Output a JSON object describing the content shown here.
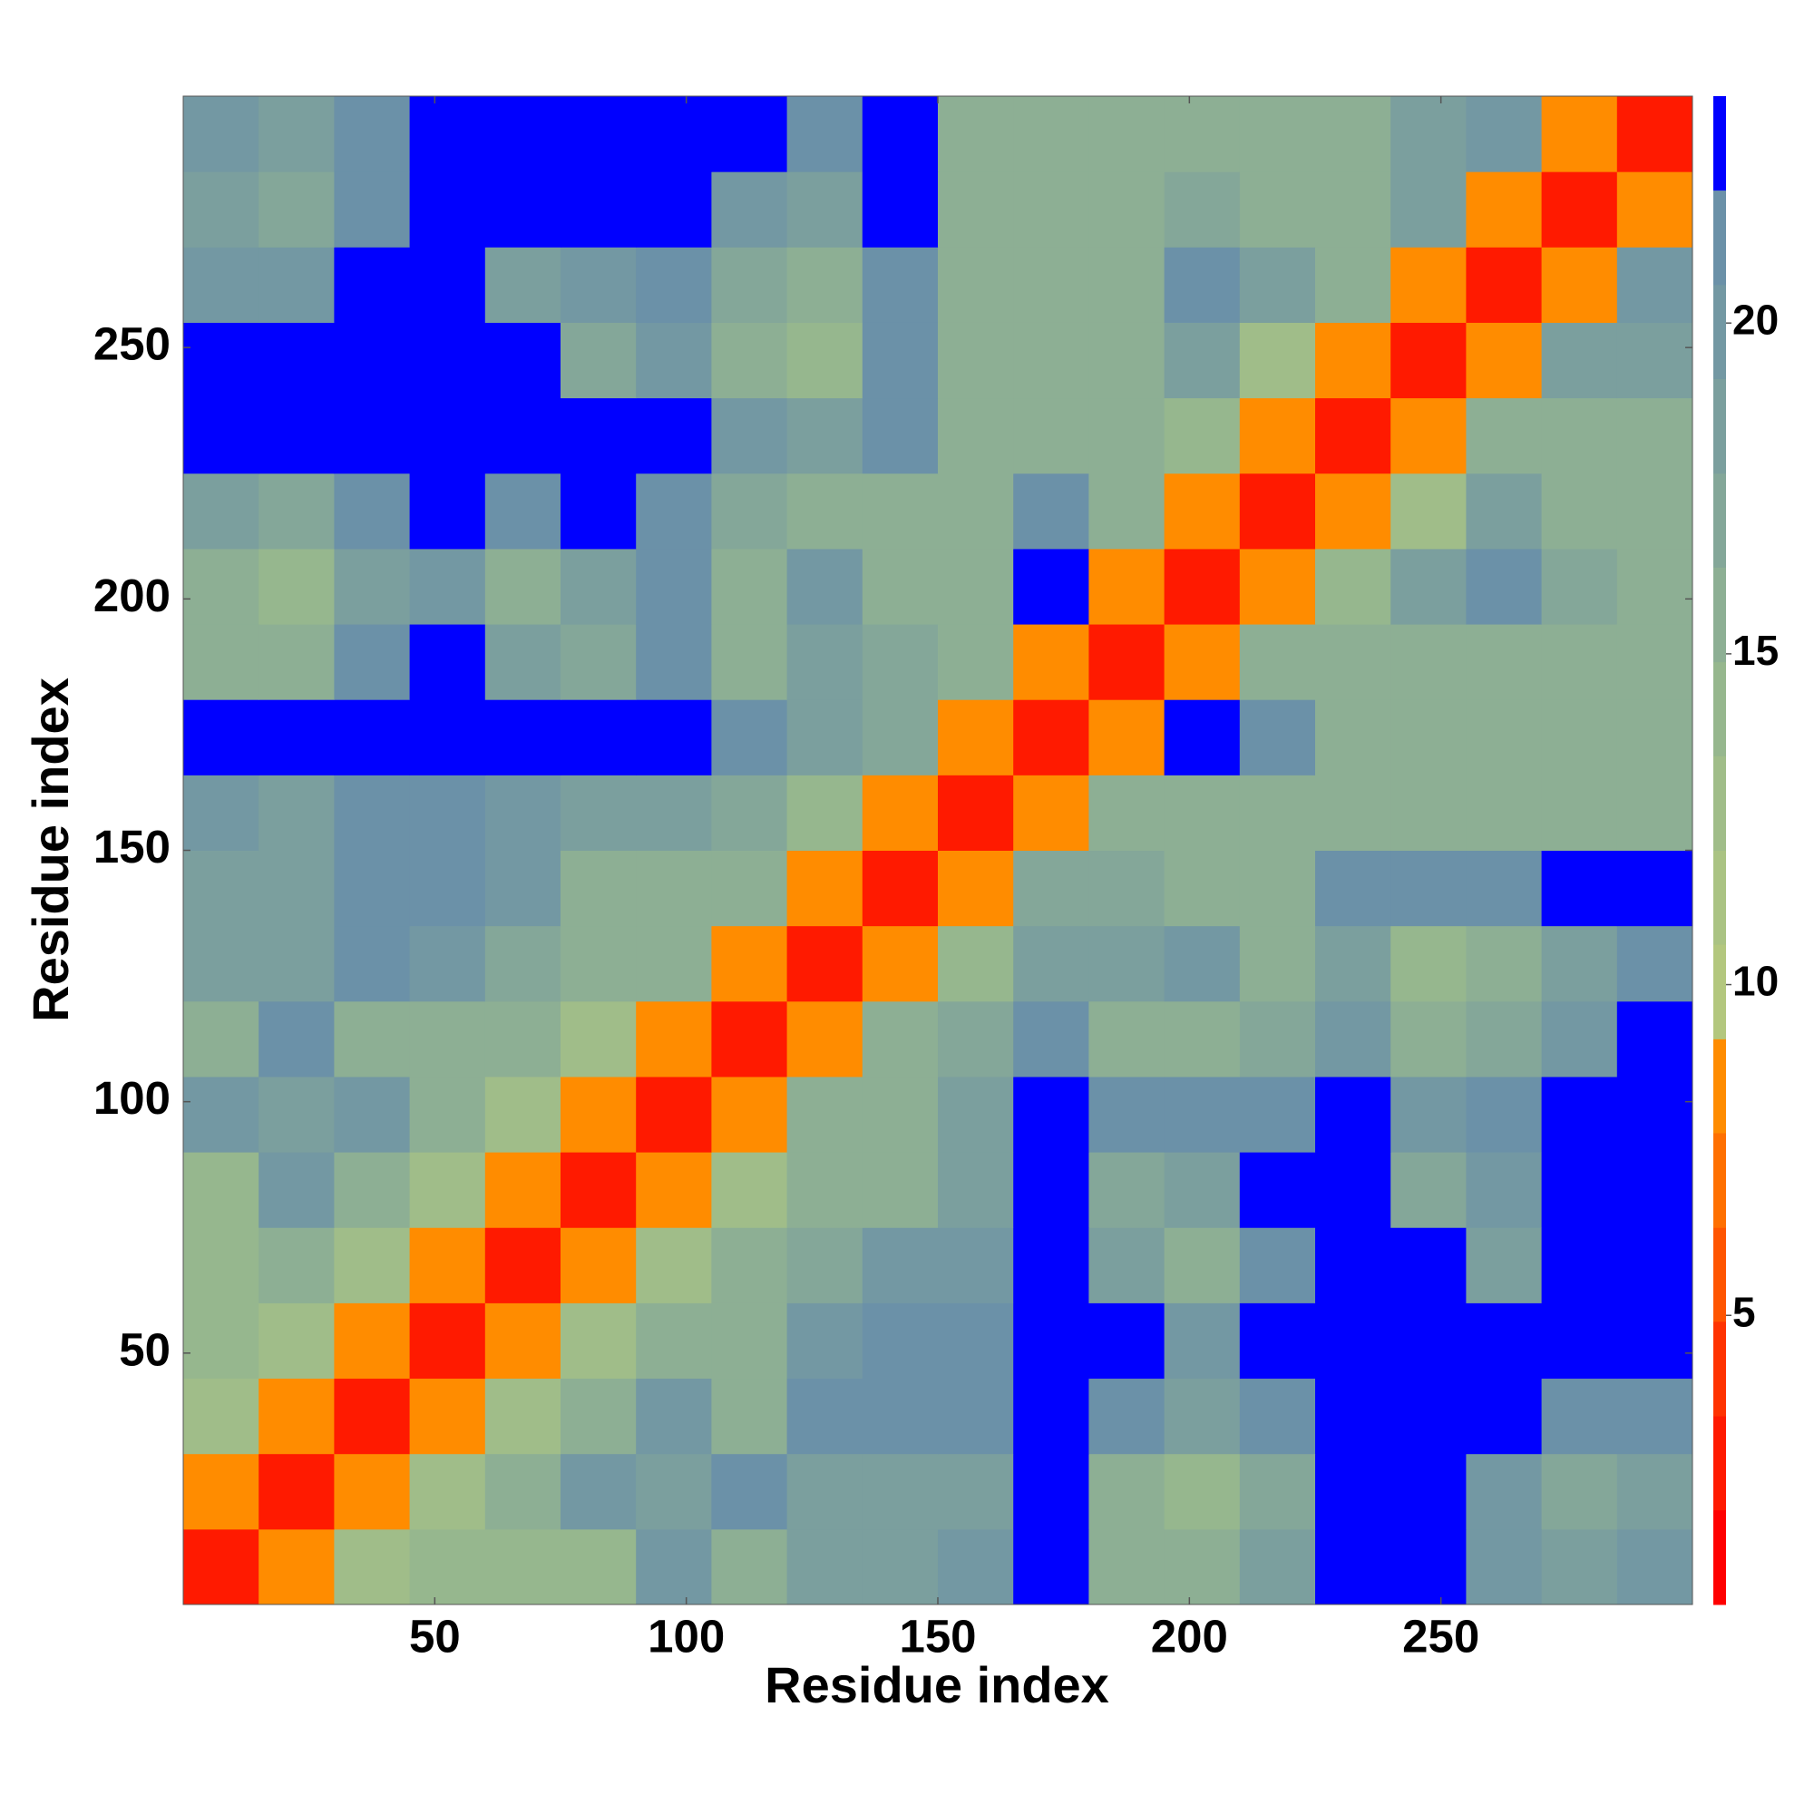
{
  "chart_data": {
    "type": "heatmap",
    "xlabel": "Residue index",
    "ylabel": "Residue index",
    "xbins": [
      0,
      15,
      30,
      45,
      60,
      75,
      90,
      105,
      120,
      135,
      150,
      165,
      180,
      195,
      210,
      225,
      240,
      255,
      270,
      285,
      300
    ],
    "ybins": [
      0,
      15,
      30,
      45,
      60,
      75,
      90,
      105,
      120,
      135,
      150,
      165,
      180,
      195,
      210,
      225,
      240,
      255,
      270,
      285,
      300
    ],
    "xlim": [
      0,
      300
    ],
    "ylim": [
      0,
      300
    ],
    "xticks": [
      50,
      100,
      150,
      200,
      250
    ],
    "yticks": [
      50,
      100,
      150,
      200,
      250
    ],
    "z": [
      [
        3,
        9,
        13,
        14,
        14,
        14,
        20,
        15,
        19,
        19,
        20,
        25,
        16,
        15,
        19,
        25,
        25,
        20,
        18,
        20
      ],
      [
        9,
        3,
        9,
        13,
        15,
        20,
        18,
        22,
        19,
        19,
        19,
        25,
        15,
        14,
        17,
        25,
        25,
        20,
        17,
        19
      ],
      [
        13,
        9,
        3,
        9,
        13,
        15,
        20,
        15,
        21,
        22,
        22,
        25,
        22,
        18,
        22,
        25,
        25,
        25,
        22,
        22
      ],
      [
        14,
        13,
        9,
        3,
        9,
        13,
        15,
        16,
        20,
        21,
        22,
        25,
        25,
        20,
        25,
        25,
        25,
        25,
        25,
        25
      ],
      [
        14,
        15,
        13,
        9,
        3,
        9,
        13,
        15,
        17,
        20,
        20,
        25,
        18,
        16,
        22,
        25,
        25,
        19,
        25,
        25
      ],
      [
        14,
        20,
        15,
        13,
        9,
        3,
        9,
        13,
        15,
        15,
        19,
        25,
        17,
        19,
        25,
        25,
        17,
        20,
        25,
        25
      ],
      [
        20,
        18,
        20,
        15,
        13,
        9,
        3,
        9,
        15,
        15,
        18,
        25,
        22,
        21,
        21,
        25,
        20,
        22,
        25,
        25
      ],
      [
        15,
        22,
        15,
        16,
        15,
        13,
        9,
        3,
        9,
        15,
        17,
        22,
        16,
        15,
        17,
        20,
        15,
        17,
        20,
        25
      ],
      [
        19,
        19,
        21,
        20,
        17,
        15,
        15,
        9,
        3,
        9,
        14,
        19,
        18,
        20,
        15,
        19,
        14,
        16,
        19,
        22
      ],
      [
        19,
        19,
        22,
        21,
        20,
        15,
        15,
        15,
        9,
        3,
        9,
        17,
        17,
        16,
        15,
        22,
        22,
        22,
        25,
        25
      ],
      [
        20,
        19,
        22,
        22,
        20,
        19,
        18,
        17,
        14,
        9,
        3,
        9,
        15,
        15,
        15,
        15,
        16,
        16,
        15,
        16
      ],
      [
        25,
        25,
        25,
        25,
        25,
        25,
        25,
        22,
        19,
        17,
        9,
        3,
        9,
        23,
        22,
        15,
        15,
        16,
        16,
        16
      ],
      [
        16,
        15,
        22,
        25,
        18,
        17,
        22,
        16,
        18,
        17,
        15,
        9,
        3,
        9,
        15,
        15,
        15,
        16,
        15,
        16
      ],
      [
        15,
        14,
        18,
        20,
        16,
        19,
        21,
        15,
        20,
        16,
        15,
        23,
        9,
        3,
        9,
        14,
        18,
        22,
        17,
        16
      ],
      [
        19,
        17,
        22,
        25,
        22,
        25,
        21,
        17,
        15,
        15,
        15,
        22,
        15,
        9,
        3,
        9,
        13,
        18,
        15,
        16
      ],
      [
        25,
        25,
        25,
        25,
        25,
        25,
        25,
        20,
        19,
        22,
        15,
        15,
        15,
        14,
        9,
        3,
        9,
        16,
        15,
        15
      ],
      [
        25,
        25,
        25,
        25,
        25,
        17,
        20,
        15,
        14,
        22,
        16,
        15,
        15,
        18,
        13,
        9,
        3,
        9,
        18,
        18
      ],
      [
        20,
        20,
        25,
        25,
        19,
        20,
        22,
        17,
        16,
        22,
        16,
        16,
        16,
        22,
        18,
        16,
        9,
        3,
        9,
        20
      ],
      [
        18,
        17,
        22,
        25,
        25,
        25,
        25,
        20,
        19,
        25,
        15,
        16,
        15,
        17,
        15,
        15,
        18,
        9,
        3,
        9
      ],
      [
        20,
        19,
        22,
        25,
        25,
        25,
        25,
        25,
        22,
        25,
        16,
        16,
        16,
        16,
        16,
        15,
        18,
        20,
        9,
        3
      ]
    ],
    "colorbar": {
      "lim": [
        0.63,
        23.43
      ],
      "ticks": [
        5,
        10,
        15,
        20
      ],
      "levels": [
        0.63,
        2.06,
        3.48,
        4.91,
        6.33,
        7.76,
        9.18,
        10.61,
        12.03,
        13.46,
        14.88,
        16.31,
        17.73,
        19.16,
        20.58,
        22.01,
        23.43
      ],
      "colors": [
        "#ff0000",
        "#ff1a00",
        "#ff3300",
        "#ff5500",
        "#ff7000",
        "#ff8c00",
        "#b3c77e",
        "#aac383",
        "#a0bd89",
        "#96b78e",
        "#8daf94",
        "#84a799",
        "#7b9f9e",
        "#7398a3",
        "#6b91a8",
        "#0000ff"
      ]
    }
  }
}
